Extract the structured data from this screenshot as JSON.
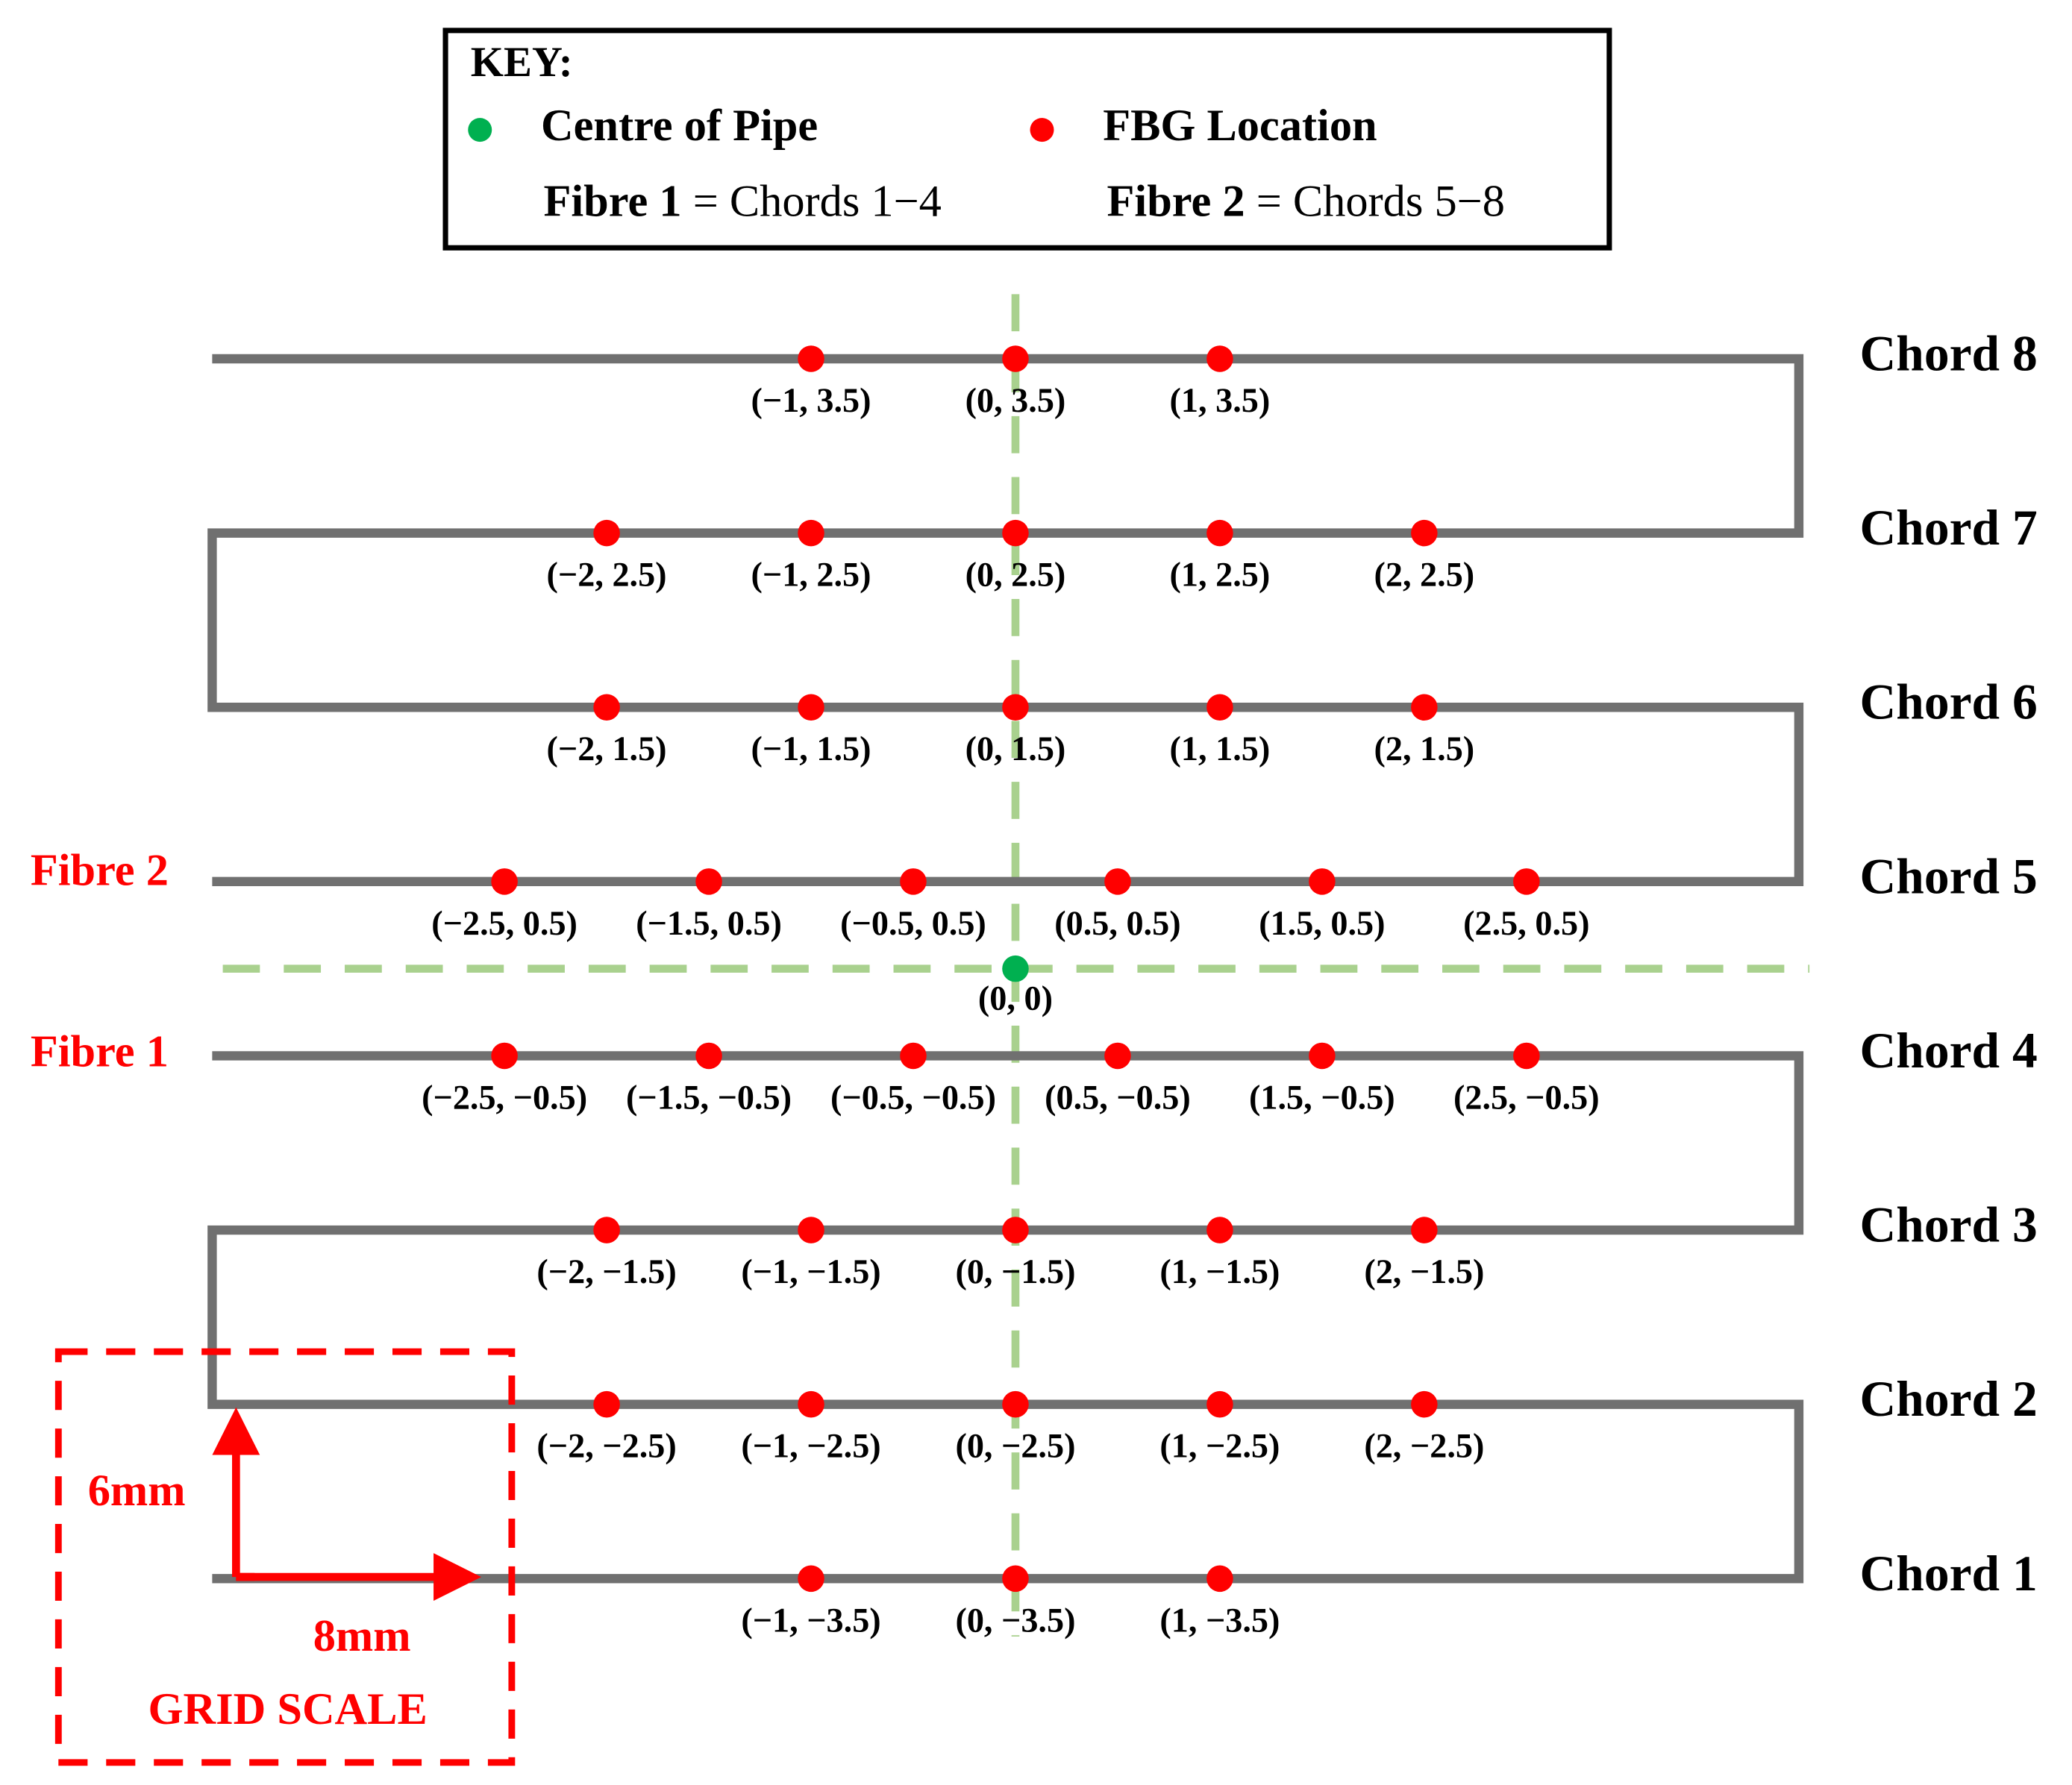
{
  "key": {
    "title": "KEY:",
    "centre": "Centre of Pipe",
    "fbg": "FBG Location",
    "fibre1_name": "Fibre 1",
    "fibre1_text": "= Chords 1−4",
    "fibre2_name": "Fibre 2",
    "fibre2_text": "= Chords 5−8"
  },
  "fibres": [
    {
      "label": "Fibre 1"
    },
    {
      "label": "Fibre 2"
    }
  ],
  "chords": [
    {
      "label": "Chord 1",
      "points": [
        "(−1, −3.5)",
        "(0, −3.5)",
        "(1, −3.5)"
      ]
    },
    {
      "label": "Chord 2",
      "points": [
        "(−2, −2.5)",
        "(−1, −2.5)",
        "(0, −2.5)",
        "(1, −2.5)",
        "(2, −2.5)"
      ]
    },
    {
      "label": "Chord 3",
      "points": [
        "(−2, −1.5)",
        "(−1, −1.5)",
        "(0, −1.5)",
        "(1, −1.5)",
        "(2, −1.5)"
      ]
    },
    {
      "label": "Chord 4",
      "points": [
        "(−2.5, −0.5)",
        "(−1.5, −0.5)",
        "(−0.5, −0.5)",
        "(0.5, −0.5)",
        "(1.5, −0.5)",
        "(2.5, −0.5)"
      ]
    },
    {
      "label": "Chord 5",
      "points": [
        "(−2.5, 0.5)",
        "(−1.5, 0.5)",
        "(−0.5, 0.5)",
        "(0.5, 0.5)",
        "(1.5, 0.5)",
        "(2.5, 0.5)"
      ]
    },
    {
      "label": "Chord 6",
      "points": [
        "(−2, 1.5)",
        "(−1, 1.5)",
        "(0, 1.5)",
        "(1, 1.5)",
        "(2, 1.5)"
      ]
    },
    {
      "label": "Chord 7",
      "points": [
        "(−2, 2.5)",
        "(−1, 2.5)",
        "(0, 2.5)",
        "(1, 2.5)",
        "(2, 2.5)"
      ]
    },
    {
      "label": "Chord 8",
      "points": [
        "(−1, 3.5)",
        "(0, 3.5)",
        "(1, 3.5)"
      ]
    }
  ],
  "centre": {
    "label": "(0, 0)"
  },
  "scale": {
    "vertical": "6mm",
    "horizontal": "8mm",
    "title": "GRID SCALE"
  }
}
